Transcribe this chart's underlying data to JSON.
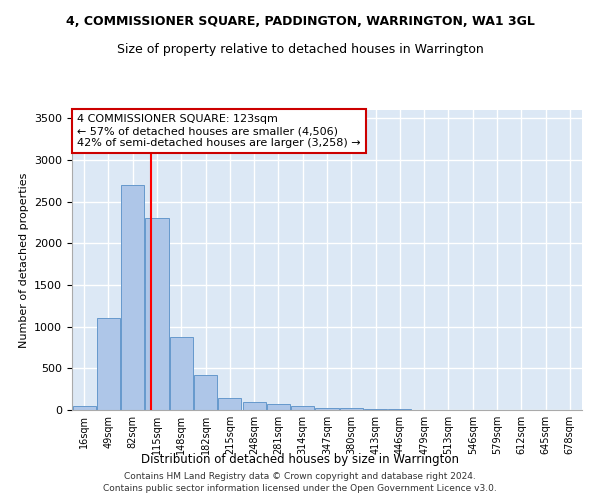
{
  "title": "4, COMMISSIONER SQUARE, PADDINGTON, WARRINGTON, WA1 3GL",
  "subtitle": "Size of property relative to detached houses in Warrington",
  "xlabel": "Distribution of detached houses by size in Warrington",
  "ylabel": "Number of detached properties",
  "categories": [
    "16sqm",
    "49sqm",
    "82sqm",
    "115sqm",
    "148sqm",
    "182sqm",
    "215sqm",
    "248sqm",
    "281sqm",
    "314sqm",
    "347sqm",
    "380sqm",
    "413sqm",
    "446sqm",
    "479sqm",
    "513sqm",
    "546sqm",
    "579sqm",
    "612sqm",
    "645sqm",
    "678sqm"
  ],
  "values": [
    50,
    1100,
    2700,
    2300,
    880,
    420,
    150,
    100,
    70,
    50,
    30,
    20,
    15,
    8,
    5,
    3,
    2,
    2,
    1,
    1,
    1
  ],
  "bar_color": "#aec6e8",
  "bar_edge_color": "#6699cc",
  "background_color": "#dce8f5",
  "grid_color": "#ffffff",
  "redline_label": "4 COMMISSIONER SQUARE: 123sqm",
  "annotation_line1": "← 57% of detached houses are smaller (4,506)",
  "annotation_line2": "42% of semi-detached houses are larger (3,258) →",
  "annotation_box_color": "#ffffff",
  "annotation_box_edgecolor": "#cc0000",
  "ylim": [
    0,
    3600
  ],
  "yticks": [
    0,
    500,
    1000,
    1500,
    2000,
    2500,
    3000,
    3500
  ],
  "title_fontsize": 9,
  "subtitle_fontsize": 9,
  "footer1": "Contains HM Land Registry data © Crown copyright and database right 2024.",
  "footer2": "Contains public sector information licensed under the Open Government Licence v3.0."
}
